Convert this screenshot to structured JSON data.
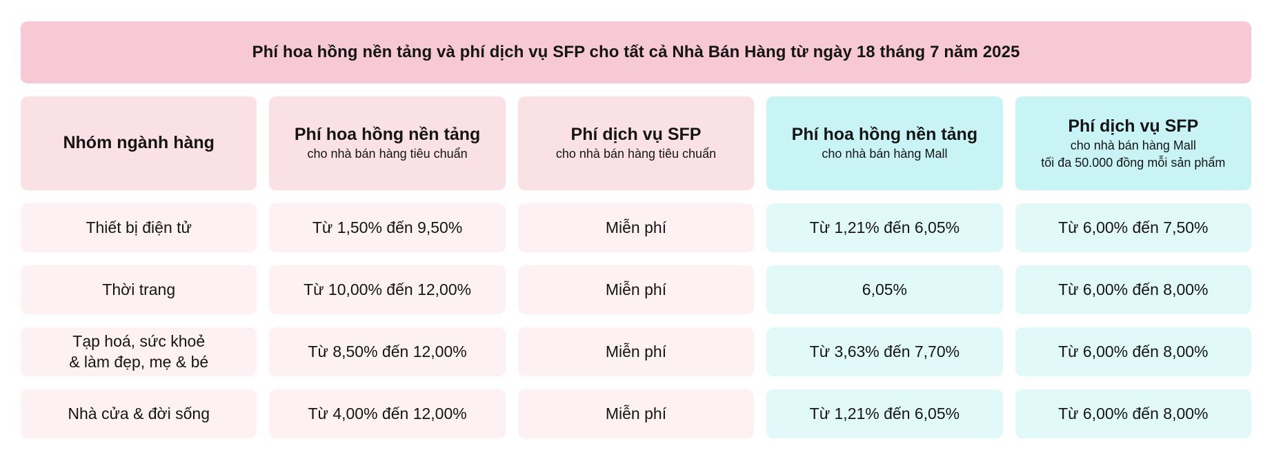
{
  "banner": {
    "title": "Phí hoa hồng nền tảng và phí dịch vụ SFP cho tất cả Nhà Bán Hàng từ ngày 18 tháng 7 năm 2025"
  },
  "table": {
    "headers": [
      {
        "title": "Nhóm ngành hàng",
        "subtitle": "",
        "subtitle2": ""
      },
      {
        "title": "Phí hoa hồng nền tảng",
        "subtitle": "cho nhà bán hàng tiêu chuẩn",
        "subtitle2": ""
      },
      {
        "title": "Phí dịch vụ SFP",
        "subtitle": "cho nhà bán hàng tiêu chuẩn",
        "subtitle2": ""
      },
      {
        "title": "Phí hoa hồng nền tảng",
        "subtitle": "cho nhà bán hàng Mall",
        "subtitle2": ""
      },
      {
        "title": "Phí dịch vụ SFP",
        "subtitle": "cho nhà bán hàng Mall",
        "subtitle2": "tối đa 50.000 đồng mỗi sản phẩm"
      }
    ],
    "rows": [
      {
        "category": "Thiết bị điện tử",
        "standard_commission": "Từ 1,50% đến 9,50%",
        "standard_sfp": "Miễn phí",
        "mall_commission": "Từ 1,21% đến 6,05%",
        "mall_sfp": "Từ 6,00% đến 7,50%"
      },
      {
        "category": "Thời trang",
        "standard_commission": "Từ 10,00% đến 12,00%",
        "standard_sfp": "Miễn phí",
        "mall_commission": "6,05%",
        "mall_sfp": "Từ 6,00% đến 8,00%"
      },
      {
        "category": "Tạp hoá, sức khoẻ\n& làm đẹp, mẹ & bé",
        "standard_commission": "Từ 8,50% đến 12,00%",
        "standard_sfp": "Miễn phí",
        "mall_commission": "Từ 3,63% đến 7,70%",
        "mall_sfp": "Từ 6,00% đến 8,00%"
      },
      {
        "category": "Nhà cửa & đời sống",
        "standard_commission": "Từ 4,00% đến 12,00%",
        "standard_sfp": "Miễn phí",
        "mall_commission": "Từ 1,21% đến 6,05%",
        "mall_sfp": "Từ 6,00% đến 8,00%"
      }
    ]
  },
  "colors": {
    "banner_bg": "#F6C9D4",
    "header_pink_bg": "#FAE1E6",
    "row_pink_bg": "#FDF1F3",
    "header_cyan_bg": "#C9F4F6",
    "row_cyan_bg": "#E1F9F8",
    "text": "#151515",
    "page_bg": "#FFFFFF"
  },
  "chart_data": {
    "type": "table",
    "title": "Phí hoa hồng nền tảng và phí dịch vụ SFP cho tất cả Nhà Bán Hàng từ ngày 18 tháng 7 năm 2025",
    "columns": [
      "Nhóm ngành hàng",
      "Phí hoa hồng nền tảng cho nhà bán hàng tiêu chuẩn",
      "Phí dịch vụ SFP cho nhà bán hàng tiêu chuẩn",
      "Phí hoa hồng nền tảng cho nhà bán hàng Mall",
      "Phí dịch vụ SFP cho nhà bán hàng Mall tối đa 50.000 đồng mỗi sản phẩm"
    ],
    "rows": [
      [
        "Thiết bị điện tử",
        "Từ 1,50% đến 9,50%",
        "Miễn phí",
        "Từ 1,21% đến 6,05%",
        "Từ 6,00% đến 7,50%"
      ],
      [
        "Thời trang",
        "Từ 10,00% đến 12,00%",
        "Miễn phí",
        "6,05%",
        "Từ 6,00% đến 8,00%"
      ],
      [
        "Tạp hoá, sức khoẻ & làm đẹp, mẹ & bé",
        "Từ 8,50% đến 12,00%",
        "Miễn phí",
        "Từ 3,63% đến 7,70%",
        "Từ 6,00% đến 8,00%"
      ],
      [
        "Nhà cửa & đời sống",
        "Từ 4,00% đến 12,00%",
        "Miễn phí",
        "Từ 1,21% đến 6,05%",
        "Từ 6,00% đến 8,00%"
      ]
    ]
  }
}
